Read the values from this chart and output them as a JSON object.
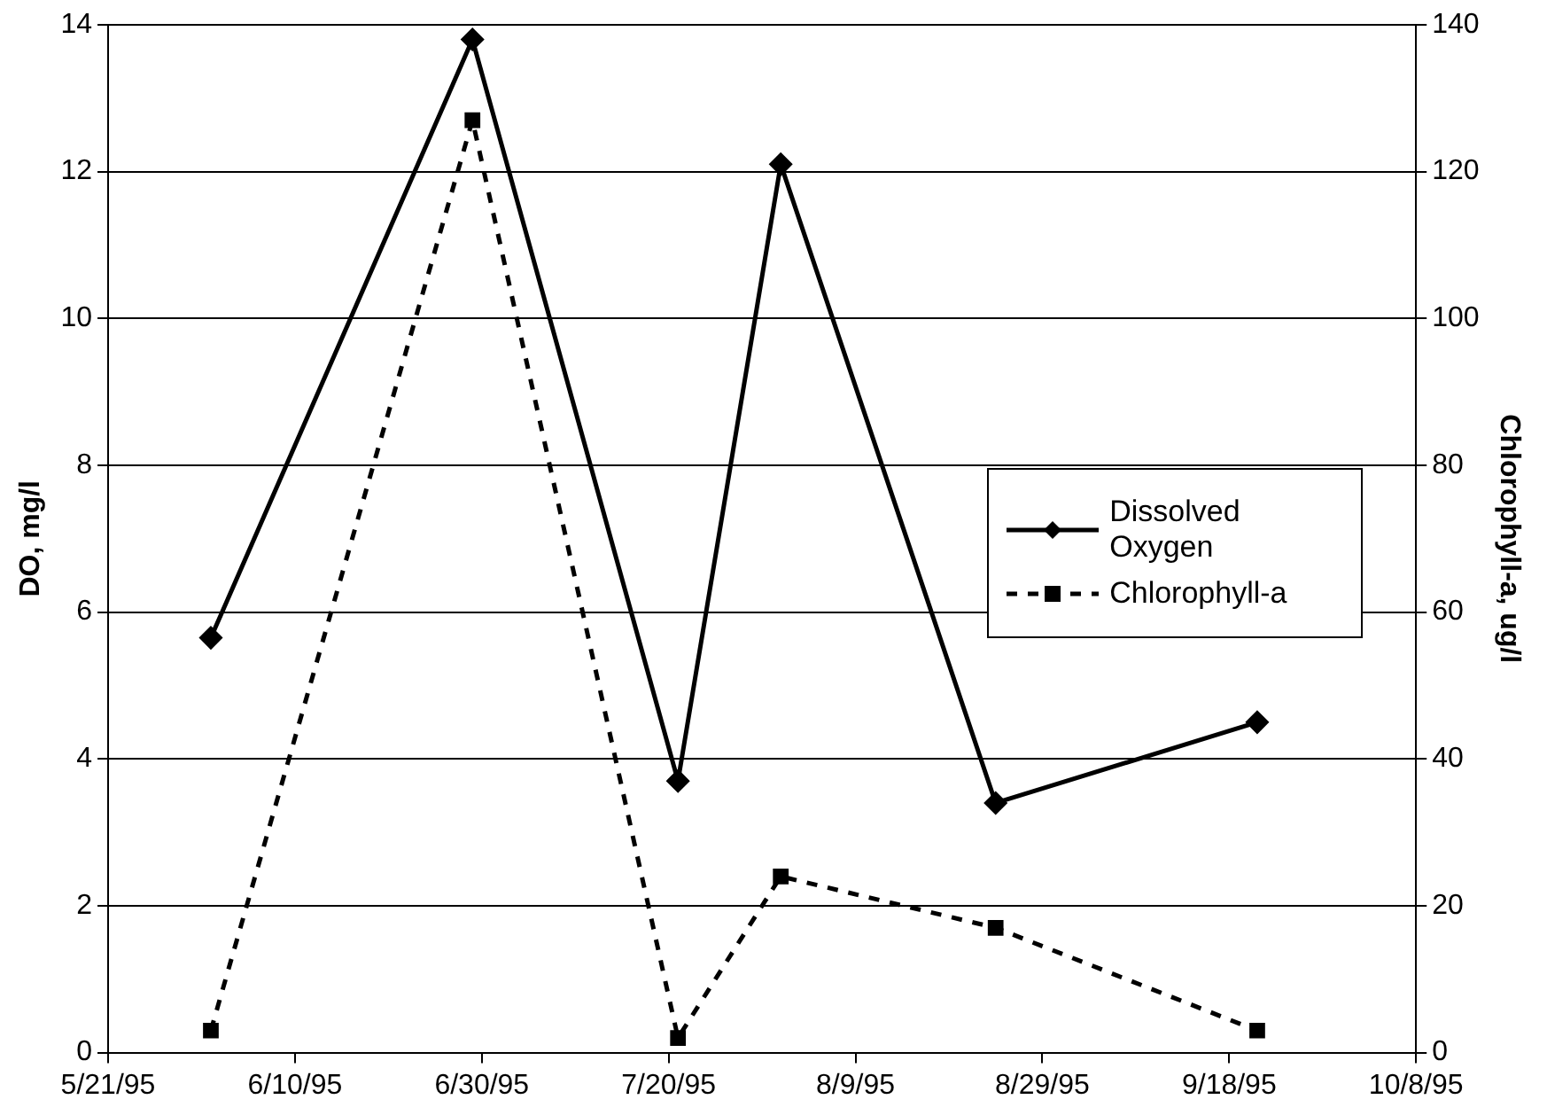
{
  "chart_data": {
    "type": "line",
    "ylabel": "DO, mg/l",
    "y2label": "Chlorophyll-a, ug/l",
    "xlim": [
      "1995-05-21",
      "1995-10-08"
    ],
    "xticks": [
      {
        "value": "1995-05-21",
        "label": "5/21/95"
      },
      {
        "value": "1995-06-10",
        "label": "6/10/95"
      },
      {
        "value": "1995-06-30",
        "label": "6/30/95"
      },
      {
        "value": "1995-07-20",
        "label": "7/20/95"
      },
      {
        "value": "1995-08-09",
        "label": "8/9/95"
      },
      {
        "value": "1995-08-29",
        "label": "8/29/95"
      },
      {
        "value": "1995-09-18",
        "label": "9/18/95"
      },
      {
        "value": "1995-10-08",
        "label": "10/8/95"
      }
    ],
    "ylim": [
      0,
      14
    ],
    "yticks": [
      0,
      2,
      4,
      6,
      8,
      10,
      12,
      14
    ],
    "y2lim": [
      0,
      140
    ],
    "y2ticks": [
      0,
      20,
      40,
      60,
      80,
      100,
      120,
      140
    ],
    "grid": "y",
    "legend": "right",
    "series": [
      {
        "name": "Dissolved Oxygen",
        "color": "#000000",
        "marker": "diamond",
        "line_style": "solid",
        "x": [
          "1995-06-01",
          "1995-06-29",
          "1995-07-21",
          "1995-08-01",
          "1995-08-24",
          "1995-09-21"
        ],
        "values": [
          5.65,
          13.8,
          3.7,
          12.1,
          3.4,
          4.5
        ]
      },
      {
        "name": "Chlorophyll-a",
        "color": "#000000",
        "marker": "square",
        "line_style": "dashed",
        "axis": "y2",
        "x": [
          "1995-06-01",
          "1995-06-29",
          "1995-07-21",
          "1995-08-01",
          "1995-08-24",
          "1995-09-21"
        ],
        "values": [
          3,
          127,
          2,
          24,
          17,
          3
        ]
      }
    ]
  }
}
